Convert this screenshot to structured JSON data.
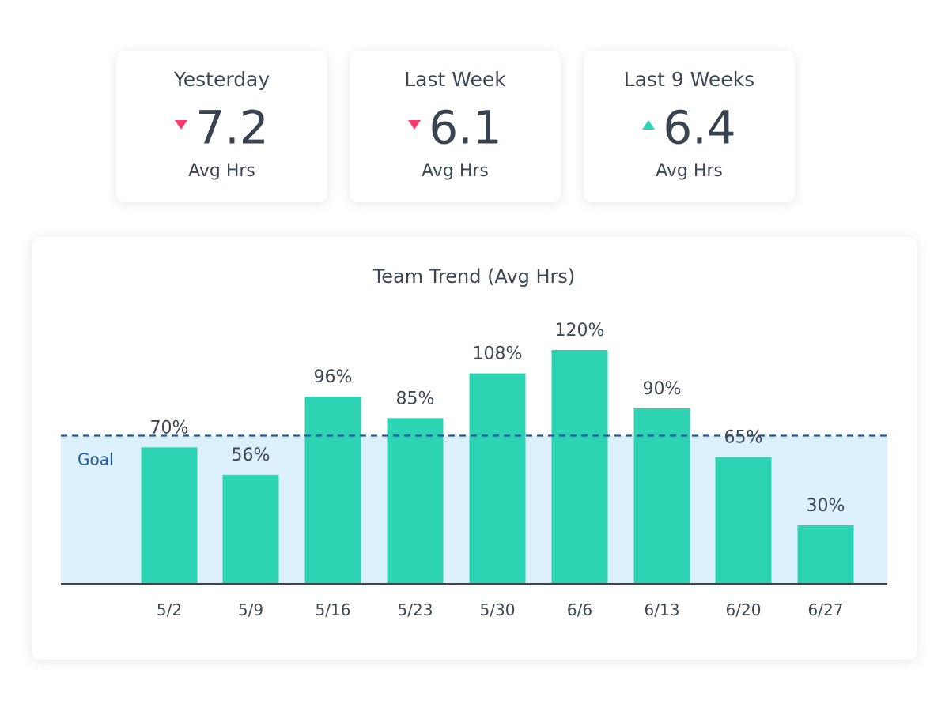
{
  "stats": [
    {
      "label": "Yesterday",
      "value": "7.2",
      "unit": "Avg Hrs",
      "trend": "down"
    },
    {
      "label": "Last Week",
      "value": "6.1",
      "unit": "Avg Hrs",
      "trend": "down"
    },
    {
      "label": "Last 9 Weeks",
      "value": "6.4",
      "unit": "Avg Hrs",
      "trend": "up"
    }
  ],
  "colors": {
    "bar": "#2dd4b4",
    "goal_band": "#dcf0fd",
    "goal_line": "#1f5a9e",
    "down": "#ff3b6b",
    "up": "#2dd4b4",
    "text": "#3d4754"
  },
  "chart_data": {
    "type": "bar",
    "title": "Team Trend (Avg Hrs)",
    "categories": [
      "5/2",
      "5/9",
      "5/16",
      "5/23",
      "5/30",
      "6/6",
      "6/13",
      "6/20",
      "6/27"
    ],
    "values": [
      70,
      56,
      96,
      85,
      108,
      120,
      90,
      65,
      30
    ],
    "data_labels": [
      "70%",
      "56%",
      "96%",
      "85%",
      "108%",
      "120%",
      "90%",
      "65%",
      "30%"
    ],
    "goal": {
      "label": "Goal",
      "value": 76
    },
    "ylim": [
      0,
      120
    ],
    "grid": false,
    "xlabel": "",
    "ylabel": ""
  }
}
